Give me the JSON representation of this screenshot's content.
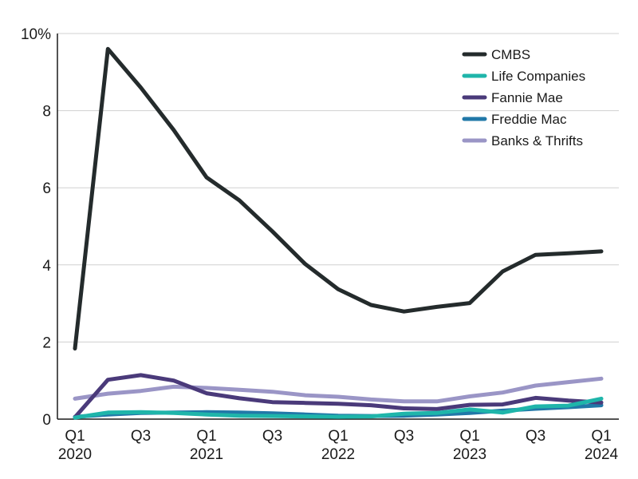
{
  "chart_data": {
    "type": "line",
    "title": "",
    "xlabel": "",
    "ylabel": "",
    "y_unit_suffix": "%",
    "ylim": [
      0,
      10
    ],
    "yticks": [
      "0",
      "2",
      "4",
      "6",
      "8",
      "10%"
    ],
    "grid": "horizontal",
    "legend_position": "top-right",
    "categories": [
      "Q1 2020",
      "Q2 2020",
      "Q3 2020",
      "Q4 2020",
      "Q1 2021",
      "Q2 2021",
      "Q3 2021",
      "Q4 2021",
      "Q1 2022",
      "Q2 2022",
      "Q3 2022",
      "Q4 2022",
      "Q1 2023",
      "Q2 2023",
      "Q3 2023",
      "Q4 2023",
      "Q1 2024"
    ],
    "xticks": [
      {
        "index": 0,
        "line1": "Q1",
        "line2": "2020"
      },
      {
        "index": 2,
        "line1": "Q3",
        "line2": ""
      },
      {
        "index": 4,
        "line1": "Q1",
        "line2": "2021"
      },
      {
        "index": 6,
        "line1": "Q3",
        "line2": ""
      },
      {
        "index": 8,
        "line1": "Q1",
        "line2": "2022"
      },
      {
        "index": 10,
        "line1": "Q3",
        "line2": ""
      },
      {
        "index": 12,
        "line1": "Q1",
        "line2": "2023"
      },
      {
        "index": 14,
        "line1": "Q3",
        "line2": ""
      },
      {
        "index": 16,
        "line1": "Q1",
        "line2": "2024"
      }
    ],
    "series": [
      {
        "name": "CMBS",
        "color": "#242b2c",
        "values": [
          1.83,
          9.6,
          8.6,
          7.5,
          6.27,
          5.67,
          4.87,
          4.02,
          3.37,
          2.96,
          2.79,
          2.91,
          3.01,
          3.83,
          4.26,
          4.3,
          4.35
        ]
      },
      {
        "name": "Life Companies",
        "color": "#1fb5aa",
        "values": [
          0.04,
          0.17,
          0.18,
          0.16,
          0.12,
          0.09,
          0.08,
          0.07,
          0.06,
          0.07,
          0.14,
          0.16,
          0.25,
          0.17,
          0.33,
          0.35,
          0.53
        ]
      },
      {
        "name": "Fannie Mae",
        "color": "#4a3a7a",
        "values": [
          0.05,
          1.02,
          1.14,
          1.0,
          0.67,
          0.54,
          0.44,
          0.42,
          0.4,
          0.36,
          0.28,
          0.26,
          0.37,
          0.38,
          0.55,
          0.48,
          0.43
        ]
      },
      {
        "name": "Freddie Mac",
        "color": "#2178a8",
        "values": [
          0.06,
          0.12,
          0.16,
          0.17,
          0.18,
          0.17,
          0.15,
          0.12,
          0.09,
          0.08,
          0.09,
          0.12,
          0.16,
          0.22,
          0.27,
          0.31,
          0.36
        ]
      },
      {
        "name": "Banks & Thrifts",
        "color": "#9a95c6",
        "values": [
          0.53,
          0.66,
          0.73,
          0.84,
          0.81,
          0.76,
          0.71,
          0.62,
          0.58,
          0.51,
          0.46,
          0.46,
          0.59,
          0.69,
          0.87,
          0.96,
          1.05
        ]
      }
    ]
  }
}
